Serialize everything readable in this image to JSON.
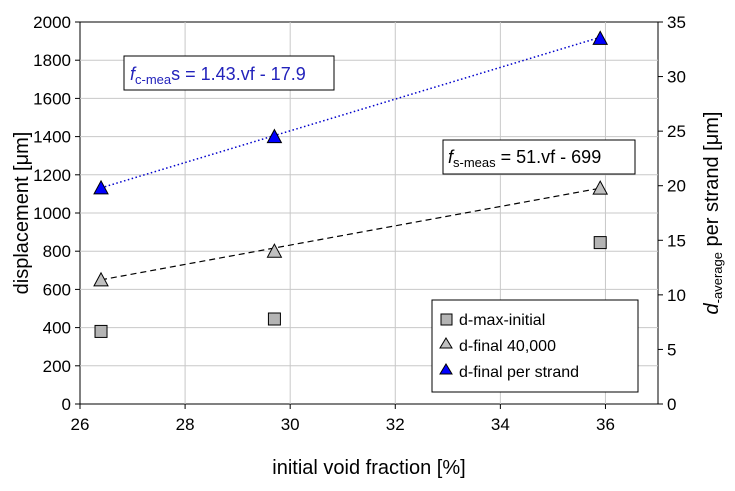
{
  "chart_data": {
    "type": "scatter",
    "xlabel": "initial void fraction [%]",
    "ylabel": "displacement  [μm]",
    "y2label": {
      "main": "d",
      "sub": "-average",
      "rest": " per strand [μm]"
    },
    "xlim": [
      26,
      37
    ],
    "ylim": [
      0,
      2000
    ],
    "y2lim": [
      0,
      35
    ],
    "xticks": [
      26,
      28,
      30,
      32,
      34,
      36
    ],
    "yticks": [
      0,
      200,
      400,
      600,
      800,
      1000,
      1200,
      1400,
      1600,
      1800,
      2000
    ],
    "y2ticks": [
      0,
      5,
      10,
      15,
      20,
      25,
      30,
      35
    ],
    "grid": true,
    "legend_position": "bottom-right",
    "series": [
      {
        "name": "d-max-initial",
        "marker": "square",
        "color": "#b4b4b4",
        "axis": "left",
        "x": [
          26.4,
          29.7,
          35.9
        ],
        "y": [
          380,
          445,
          845
        ]
      },
      {
        "name": "d-final 40,000",
        "marker": "triangle",
        "color": "#c0c0c0",
        "axis": "left",
        "x": [
          26.4,
          29.7,
          35.9
        ],
        "y": [
          650,
          800,
          1130
        ]
      },
      {
        "name": "d-final per strand",
        "marker": "triangle",
        "color": "#0000ff",
        "axis": "right",
        "x": [
          26.4,
          29.7,
          35.9
        ],
        "y": [
          19.8,
          24.5,
          33.5
        ]
      }
    ],
    "trendlines": [
      {
        "series": "d-final 40,000",
        "style": "dashed",
        "color": "#000000",
        "axis": "left",
        "x": [
          26.4,
          35.9
        ],
        "y": [
          650,
          1130
        ]
      },
      {
        "series": "d-final per strand",
        "style": "dotted",
        "color": "#0000cc",
        "axis": "right",
        "x": [
          26.4,
          35.9
        ],
        "y": [
          19.8,
          33.6
        ]
      }
    ],
    "annotations": [
      {
        "id": "blue",
        "f": "f",
        "sub": "c-mea",
        "rest": "s = 1.43.vf - 17.9",
        "color": "#2222bb"
      },
      {
        "id": "black",
        "f": "f",
        "sub": "s-meas",
        "rest": " = 51.vf - 699",
        "color": "#000000"
      }
    ]
  }
}
